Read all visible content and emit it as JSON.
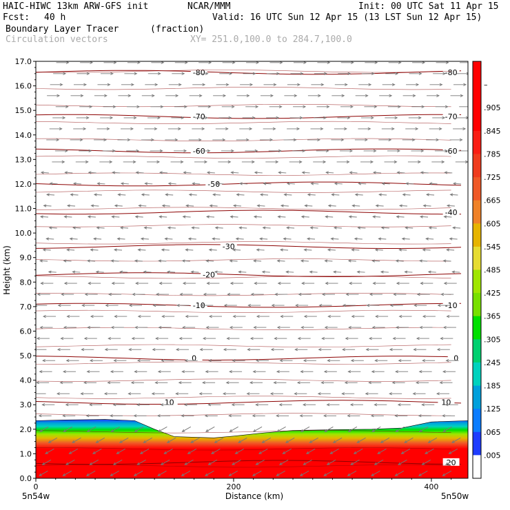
{
  "header": {
    "model": "HAIC-HIWC 13km ARW-GFS init",
    "org": "NCAR/MMM",
    "init": "Init: 00 UTC Sat 11 Apr 15",
    "fcst_label": "Fcst:",
    "fcst_value": "40 h",
    "valid": "Valid: 16 UTC Sun 12 Apr 15 (13 LST Sun 12 Apr 15)",
    "field1": "Boundary Layer Tracer",
    "field1_units": "(fraction)",
    "field2": "Circulation vectors",
    "xy": "XY= 251.0,100.0 to 284.7,100.0"
  },
  "colors": {
    "contour": "#8b0000",
    "vector": "#777777",
    "colorbar": [
      "#ffffff",
      "#1e3cff",
      "#0a7cff",
      "#00a0dc",
      "#00d2be",
      "#00d070",
      "#00e000",
      "#78e000",
      "#a0e600",
      "#e6dc32",
      "#e6b400",
      "#f08228",
      "#f05a28",
      "#f03c1e",
      "#fa1e14",
      "#ff0000",
      "#ff0000",
      "#ff0000"
    ]
  },
  "chart_data": {
    "type": "heatmap",
    "xlabel": "Distance (km)",
    "ylabel": "Height (km)",
    "xlim": [
      0,
      437
    ],
    "ylim": [
      0,
      17
    ],
    "x_ticks": [
      0,
      200,
      400
    ],
    "x_tick_labels": [
      "0",
      "200",
      "400"
    ],
    "y_ticks": [
      0,
      1,
      2,
      3,
      4,
      5,
      6,
      7,
      8,
      9,
      10,
      11,
      12,
      13,
      14,
      15,
      16,
      17
    ],
    "y_tick_labels": [
      "0.0",
      "1.0",
      "2.0",
      "3.0",
      "4.0",
      "5.0",
      "6.0",
      "7.0",
      "8.0",
      "9.0",
      "10.0",
      "11.0",
      "12.0",
      "13.0",
      "14.0",
      "15.0",
      "16.0",
      "17.0"
    ],
    "x_endpoint_labels": [
      "5n54w",
      "5n50w"
    ],
    "colorbar_labels": [
      "–",
      ".905",
      ".845",
      ".785",
      ".725",
      ".665",
      ".605",
      ".545",
      ".485",
      ".425",
      ".365",
      ".305",
      ".245",
      ".185",
      ".125",
      ".065",
      ".005"
    ],
    "bl_top_height": [
      [
        0,
        2.35
      ],
      [
        30,
        2.38
      ],
      [
        70,
        2.4
      ],
      [
        100,
        2.35
      ],
      [
        120,
        2.0
      ],
      [
        140,
        1.7
      ],
      [
        180,
        1.65
      ],
      [
        200,
        1.72
      ],
      [
        230,
        1.85
      ],
      [
        260,
        1.95
      ],
      [
        300,
        1.98
      ],
      [
        340,
        2.0
      ],
      [
        370,
        2.05
      ],
      [
        400,
        2.3
      ],
      [
        437,
        2.35
      ]
    ],
    "temperature_contours": [
      {
        "label": "-80",
        "height": 16.55,
        "label_x": [
          165,
          420
        ]
      },
      {
        "label": "-70",
        "height": 14.75,
        "label_x": [
          165,
          420
        ]
      },
      {
        "label": "-60",
        "height": 13.35,
        "label_x": [
          165,
          420
        ]
      },
      {
        "label": "-50",
        "height": 12.0,
        "label_x": [
          180
        ]
      },
      {
        "label": "-40",
        "height": 10.85,
        "label_x": [
          420
        ]
      },
      {
        "label": "-30",
        "height": 9.45,
        "label_x": [
          195
        ]
      },
      {
        "label": "-20",
        "height": 8.3,
        "label_x": [
          175
        ]
      },
      {
        "label": "-10",
        "height": 7.05,
        "label_x": [
          165,
          420
        ]
      },
      {
        "label": "0",
        "height": 4.9,
        "label_x": [
          160,
          425
        ]
      },
      {
        "label": "10",
        "height": 3.1,
        "label_x": [
          135,
          415
        ]
      },
      {
        "label": "20",
        "height": 0.65,
        "label_x": [
          420
        ]
      }
    ],
    "wind_regimes": [
      {
        "z_min": 12.5,
        "z_max": 17.0,
        "u": 1.0,
        "w": 0.0
      },
      {
        "z_min": 8.0,
        "z_max": 12.5,
        "u": -0.5,
        "w": 0.05
      },
      {
        "z_min": 2.5,
        "z_max": 8.0,
        "u": -1.0,
        "w": 0.0
      },
      {
        "z_min": 0.0,
        "z_max": 2.5,
        "u": -0.6,
        "w": -0.5
      }
    ]
  }
}
